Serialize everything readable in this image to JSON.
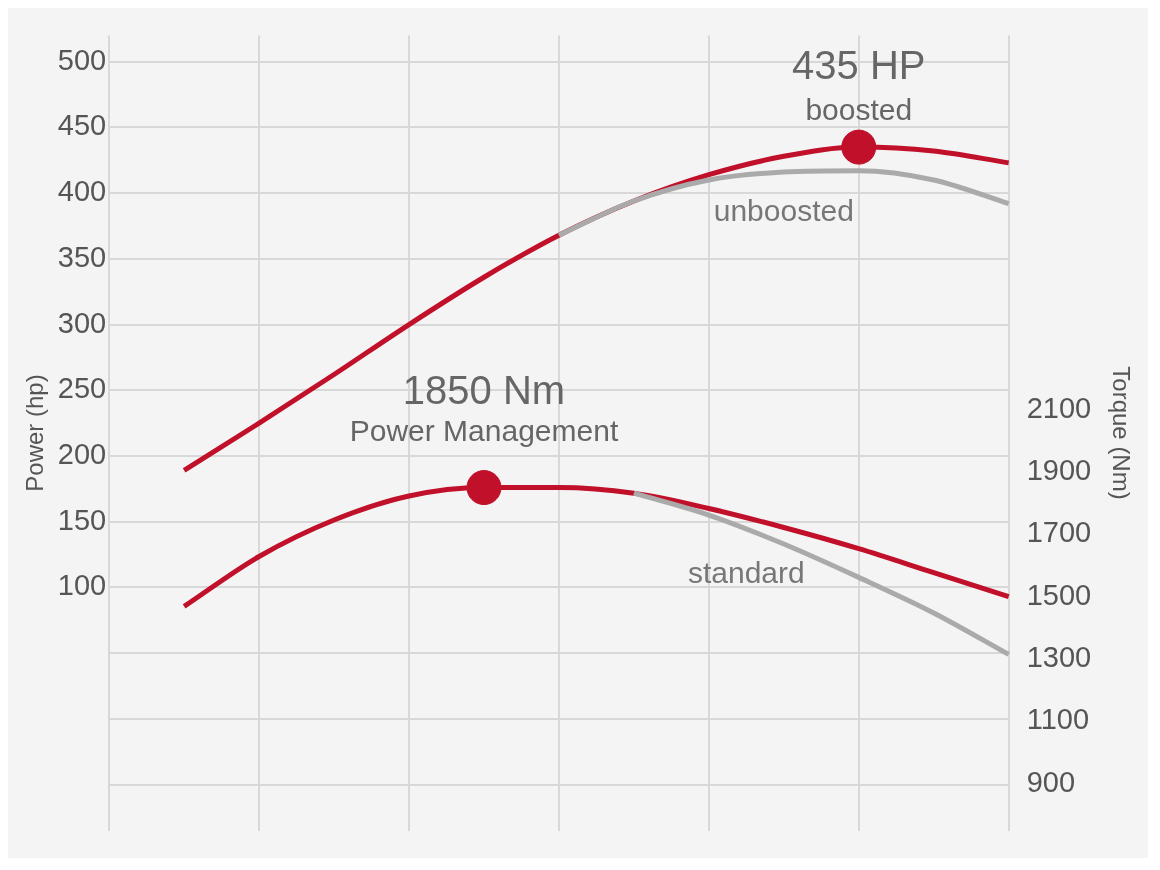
{
  "chart_data": {
    "type": "line",
    "ylabel": "Power (hp)",
    "y2label": "Torque (Nm)",
    "categories": [
      null,
      null,
      null,
      null,
      null,
      null,
      null,
      null,
      null,
      null,
      null,
      null,
      null
    ],
    "series": [
      {
        "color": "#aaaaaa",
        "axis": "y",
        "values": [
          null,
          null,
          null,
          null,
          null,
          null,
          368,
          394,
          410,
          416,
          417,
          410,
          392
        ]
      },
      {
        "color": "#c0102a",
        "axis": "y",
        "values": [
          null,
          189,
          225,
          262,
          300,
          336,
          368,
          394,
          414,
          428,
          435,
          432,
          423
        ]
      },
      {
        "color": "#aaaaaa",
        "axis": "y2",
        "values": [
          null,
          null,
          null,
          null,
          null,
          null,
          null,
          1832,
          1762,
          1669,
          1562,
          1448,
          1315
        ]
      },
      {
        "color": "#c0102a",
        "axis": "y2",
        "values": [
          null,
          1469,
          1629,
          1746,
          1823,
          1850,
          1850,
          1832,
          1783,
          1722,
          1654,
          1577,
          1500
        ]
      },
      {
        "type": "scatter",
        "color": "#c0102a",
        "axis": "y",
        "marker": "circle",
        "values": [
          null,
          null,
          null,
          null,
          null,
          null,
          null,
          null,
          null,
          null,
          435,
          null,
          null
        ]
      },
      {
        "type": "scatter",
        "color": "#c0102a",
        "axis": "y2",
        "marker": "circle",
        "values": [
          null,
          null,
          null,
          null,
          null,
          1850,
          null,
          null,
          null,
          null,
          null,
          null,
          null
        ]
      }
    ],
    "ylim": [
      -85,
      520
    ],
    "yticks": [
      {
        "value": -50,
        "label": null
      },
      {
        "value": 0,
        "label": null
      },
      {
        "value": 50,
        "label": null
      },
      100,
      150,
      200,
      250,
      300,
      350,
      400,
      450,
      500
    ],
    "y2lim": [
      750,
      3300
    ],
    "y2ticks": [
      900,
      1100,
      1300,
      1500,
      1700,
      1900,
      2100
    ],
    "grid": true,
    "marker": "none",
    "legend": false,
    "annotations": [
      "435 HP",
      "boosted",
      "unboosted",
      "1850 Nm",
      "Power Management",
      "standard"
    ]
  }
}
